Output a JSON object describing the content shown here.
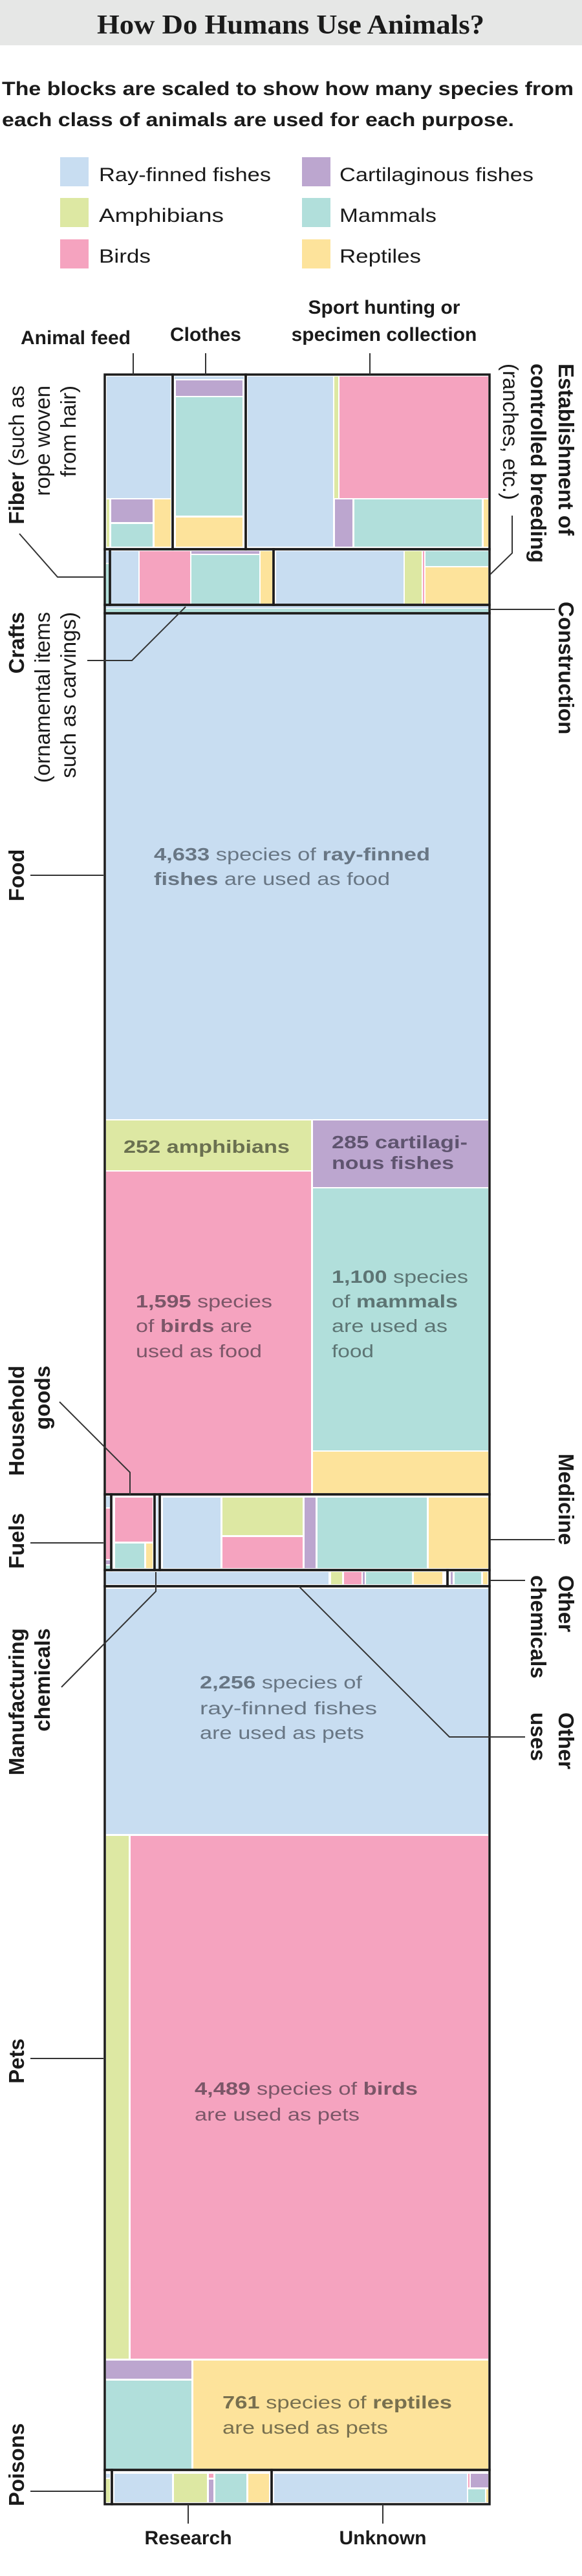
{
  "chart_data": {
    "type": "treemap",
    "title": "How Do Humans Use Animals?",
    "subtitle": [
      "The blocks are scaled to show how many species from",
      "each class of animals are used for each purpose."
    ],
    "legend": [
      {
        "name": "Ray-finned fishes",
        "color": "#c8ddf1"
      },
      {
        "name": "Amphibians",
        "color": "#dde8a3"
      },
      {
        "name": "Birds",
        "color": "#f5a3bf"
      },
      {
        "name": "Cartilaginous fishes",
        "color": "#bca6cf"
      },
      {
        "name": "Mammals",
        "color": "#b1dfdb"
      },
      {
        "name": "Reptiles",
        "color": "#fde39b"
      }
    ],
    "uses": [
      {
        "id": "animal-feed",
        "lines": [
          [
            {
              "t": "Animal feed",
              "b": true
            }
          ]
        ]
      },
      {
        "id": "clothes",
        "lines": [
          [
            {
              "t": "Clothes",
              "b": true
            }
          ]
        ]
      },
      {
        "id": "sport-hunting",
        "lines": [
          [
            {
              "t": "Sport hunting or",
              "b": true
            }
          ],
          [
            {
              "t": "specimen collection",
              "b": true
            }
          ]
        ]
      },
      {
        "id": "establishment",
        "lines": [
          [
            {
              "t": "Establishment of",
              "b": true
            }
          ],
          [
            {
              "t": "controlled breeding",
              "b": true
            }
          ],
          [
            {
              "t": "(ranches, etc.)",
              "b": false
            }
          ]
        ]
      },
      {
        "id": "fiber",
        "lines": [
          [
            {
              "t": "Fiber",
              "b": true
            },
            {
              "t": " (such as",
              "b": false
            }
          ],
          [
            {
              "t": "rope woven",
              "b": false
            }
          ],
          [
            {
              "t": "from hair)",
              "b": false
            }
          ]
        ]
      },
      {
        "id": "crafts",
        "lines": [
          [
            {
              "t": "Crafts",
              "b": true
            }
          ],
          [
            {
              "t": "(ornamental items",
              "b": false
            }
          ],
          [
            {
              "t": "such as carvings)",
              "b": false
            }
          ]
        ]
      },
      {
        "id": "construction",
        "lines": [
          [
            {
              "t": "Construction",
              "b": true
            }
          ]
        ]
      },
      {
        "id": "food",
        "lines": [
          [
            {
              "t": "Food",
              "b": true
            }
          ]
        ]
      },
      {
        "id": "household-goods",
        "lines": [
          [
            {
              "t": "Household",
              "b": true
            }
          ],
          [
            {
              "t": "goods",
              "b": true
            }
          ]
        ]
      },
      {
        "id": "fuels",
        "lines": [
          [
            {
              "t": "Fuels",
              "b": true
            }
          ]
        ]
      },
      {
        "id": "medicine",
        "lines": [
          [
            {
              "t": "Medicine",
              "b": true
            }
          ]
        ]
      },
      {
        "id": "manufacturing-chemicals",
        "lines": [
          [
            {
              "t": "Manufacturing",
              "b": true
            }
          ],
          [
            {
              "t": "chemicals",
              "b": true
            }
          ]
        ]
      },
      {
        "id": "other-chemicals",
        "lines": [
          [
            {
              "t": "Other",
              "b": true
            }
          ],
          [
            {
              "t": "chemicals",
              "b": true
            }
          ]
        ]
      },
      {
        "id": "other-uses",
        "lines": [
          [
            {
              "t": "Other",
              "b": true
            }
          ],
          [
            {
              "t": "uses",
              "b": true
            }
          ]
        ]
      },
      {
        "id": "pets",
        "lines": [
          [
            {
              "t": "Pets",
              "b": true
            }
          ]
        ]
      },
      {
        "id": "poisons",
        "lines": [
          [
            {
              "t": "Poisons",
              "b": true
            }
          ]
        ]
      },
      {
        "id": "research",
        "lines": [
          [
            {
              "t": "Research",
              "b": true
            }
          ]
        ]
      },
      {
        "id": "unknown",
        "lines": [
          [
            {
              "t": "Unknown",
              "b": true
            }
          ]
        ]
      }
    ],
    "annotations": [
      {
        "use": "Food",
        "class": "Ray-finned fishes",
        "species": 4633,
        "lines": [
          [
            {
              "t": "4,633",
              "b": true
            },
            {
              "t": " species of ",
              "b": false
            },
            {
              "t": "ray-finned",
              "b": true
            }
          ],
          [
            {
              "t": "fishes",
              "b": true
            },
            {
              "t": " are used as food",
              "b": false
            }
          ]
        ]
      },
      {
        "use": "Food",
        "class": "Amphibians",
        "species": 252,
        "lines": [
          [
            {
              "t": "252 amphibians",
              "b": true
            }
          ]
        ]
      },
      {
        "use": "Food",
        "class": "Cartilaginous fishes",
        "species": 285,
        "lines": [
          [
            {
              "t": "285 cartilagi-",
              "b": true
            }
          ],
          [
            {
              "t": "nous fishes",
              "b": true
            }
          ]
        ]
      },
      {
        "use": "Food",
        "class": "Birds",
        "species": 1595,
        "lines": [
          [
            {
              "t": "1,595",
              "b": true
            },
            {
              "t": " species",
              "b": false
            }
          ],
          [
            {
              "t": "of ",
              "b": false
            },
            {
              "t": "birds",
              "b": true
            },
            {
              "t": " are",
              "b": false
            }
          ],
          [
            {
              "t": "used as food",
              "b": false
            }
          ]
        ]
      },
      {
        "use": "Food",
        "class": "Mammals",
        "species": 1100,
        "lines": [
          [
            {
              "t": "1,100",
              "b": true
            },
            {
              "t": " species",
              "b": false
            }
          ],
          [
            {
              "t": "of ",
              "b": false
            },
            {
              "t": "mammals",
              "b": true
            }
          ],
          [
            {
              "t": "are used as",
              "b": false
            }
          ],
          [
            {
              "t": "food",
              "b": false
            }
          ]
        ]
      },
      {
        "use": "Pets",
        "class": "Ray-finned fishes",
        "species": 2256,
        "lines": [
          [
            {
              "t": "2,256",
              "b": true
            },
            {
              "t": " species of",
              "b": false
            }
          ],
          [
            {
              "t": "ray-finned fishes",
              "b": false
            }
          ],
          [
            {
              "t": "are used as pets",
              "b": false
            }
          ]
        ]
      },
      {
        "use": "Pets",
        "class": "Birds",
        "species": 4489,
        "lines": [
          [
            {
              "t": "4,489",
              "b": true
            },
            {
              "t": " species of ",
              "b": false
            },
            {
              "t": "birds",
              "b": true
            }
          ],
          [
            {
              "t": "are used as pets",
              "b": false
            }
          ]
        ]
      },
      {
        "use": "Pets",
        "class": "Reptiles",
        "species": 761,
        "lines": [
          [
            {
              "t": "761",
              "b": true
            },
            {
              "t": " species of ",
              "b": false
            },
            {
              "t": "reptiles",
              "b": true
            }
          ],
          [
            {
              "t": "are used as pets",
              "b": false
            }
          ]
        ]
      }
    ]
  }
}
